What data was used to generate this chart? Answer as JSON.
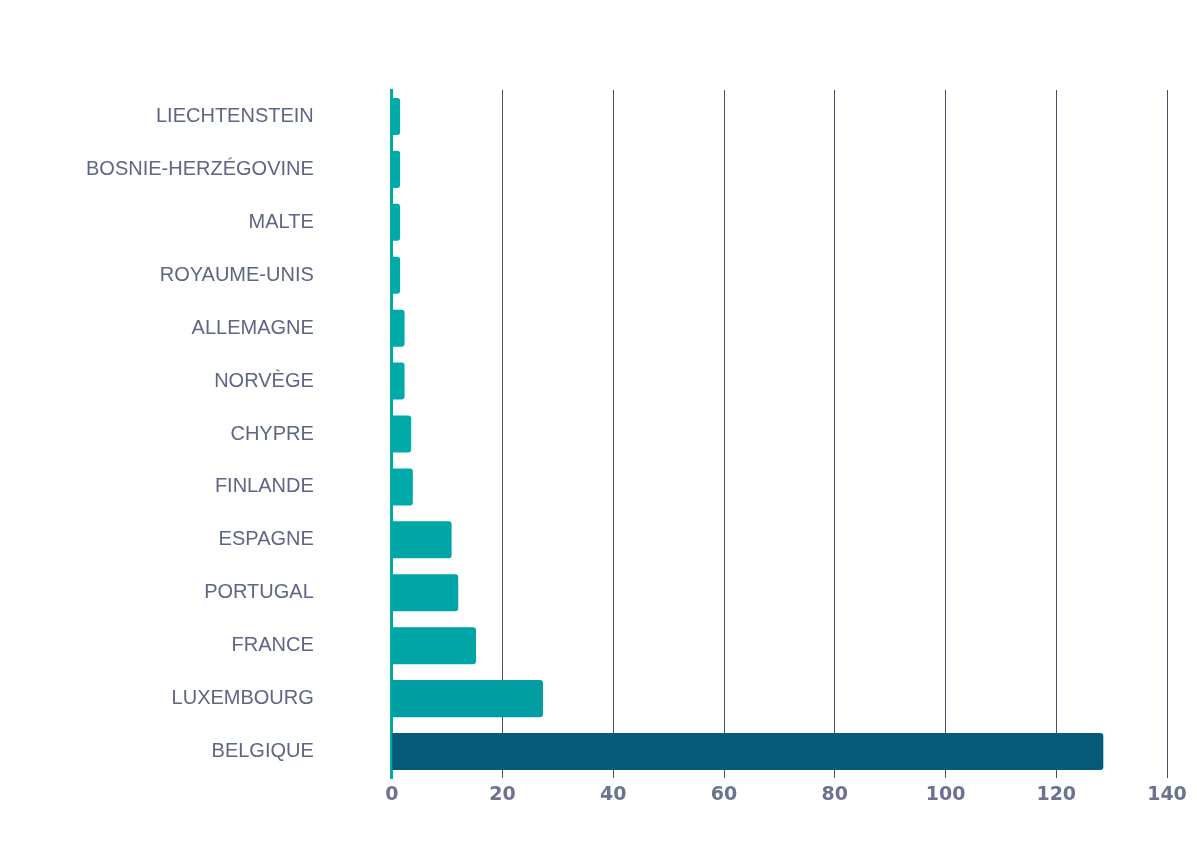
{
  "chart_data": {
    "type": "bar",
    "orientation": "horizontal",
    "categories": [
      "LIECHTENSTEIN",
      "BOSNIE-HERZÉGOVINE",
      "MALTE",
      "ROYAUME-UNIS",
      "ALLEMAGNE",
      "NORVÈGE",
      "CHYPRE",
      "FINLANDE",
      "ESPAGNE",
      "PORTUGAL",
      "FRANCE",
      "LUXEMBOURG",
      "BELGIQUE"
    ],
    "values": [
      1.5,
      1.5,
      1.5,
      1.5,
      2.3,
      2.3,
      3.5,
      3.8,
      10.8,
      12,
      15.2,
      27.3,
      128.5
    ],
    "colors": [
      "#00aaa8",
      "#00aaa8",
      "#00aaa8",
      "#00aaa8",
      "#00aaa8",
      "#00aaa8",
      "#00aaa8",
      "#00aaa8",
      "#00a6a6",
      "#00a6a6",
      "#00a4a4",
      "#009ea2",
      "#045a78"
    ],
    "xlim": [
      0,
      140
    ],
    "xticks": [
      0,
      20,
      40,
      60,
      80,
      100,
      120,
      140
    ],
    "grid": "x"
  }
}
